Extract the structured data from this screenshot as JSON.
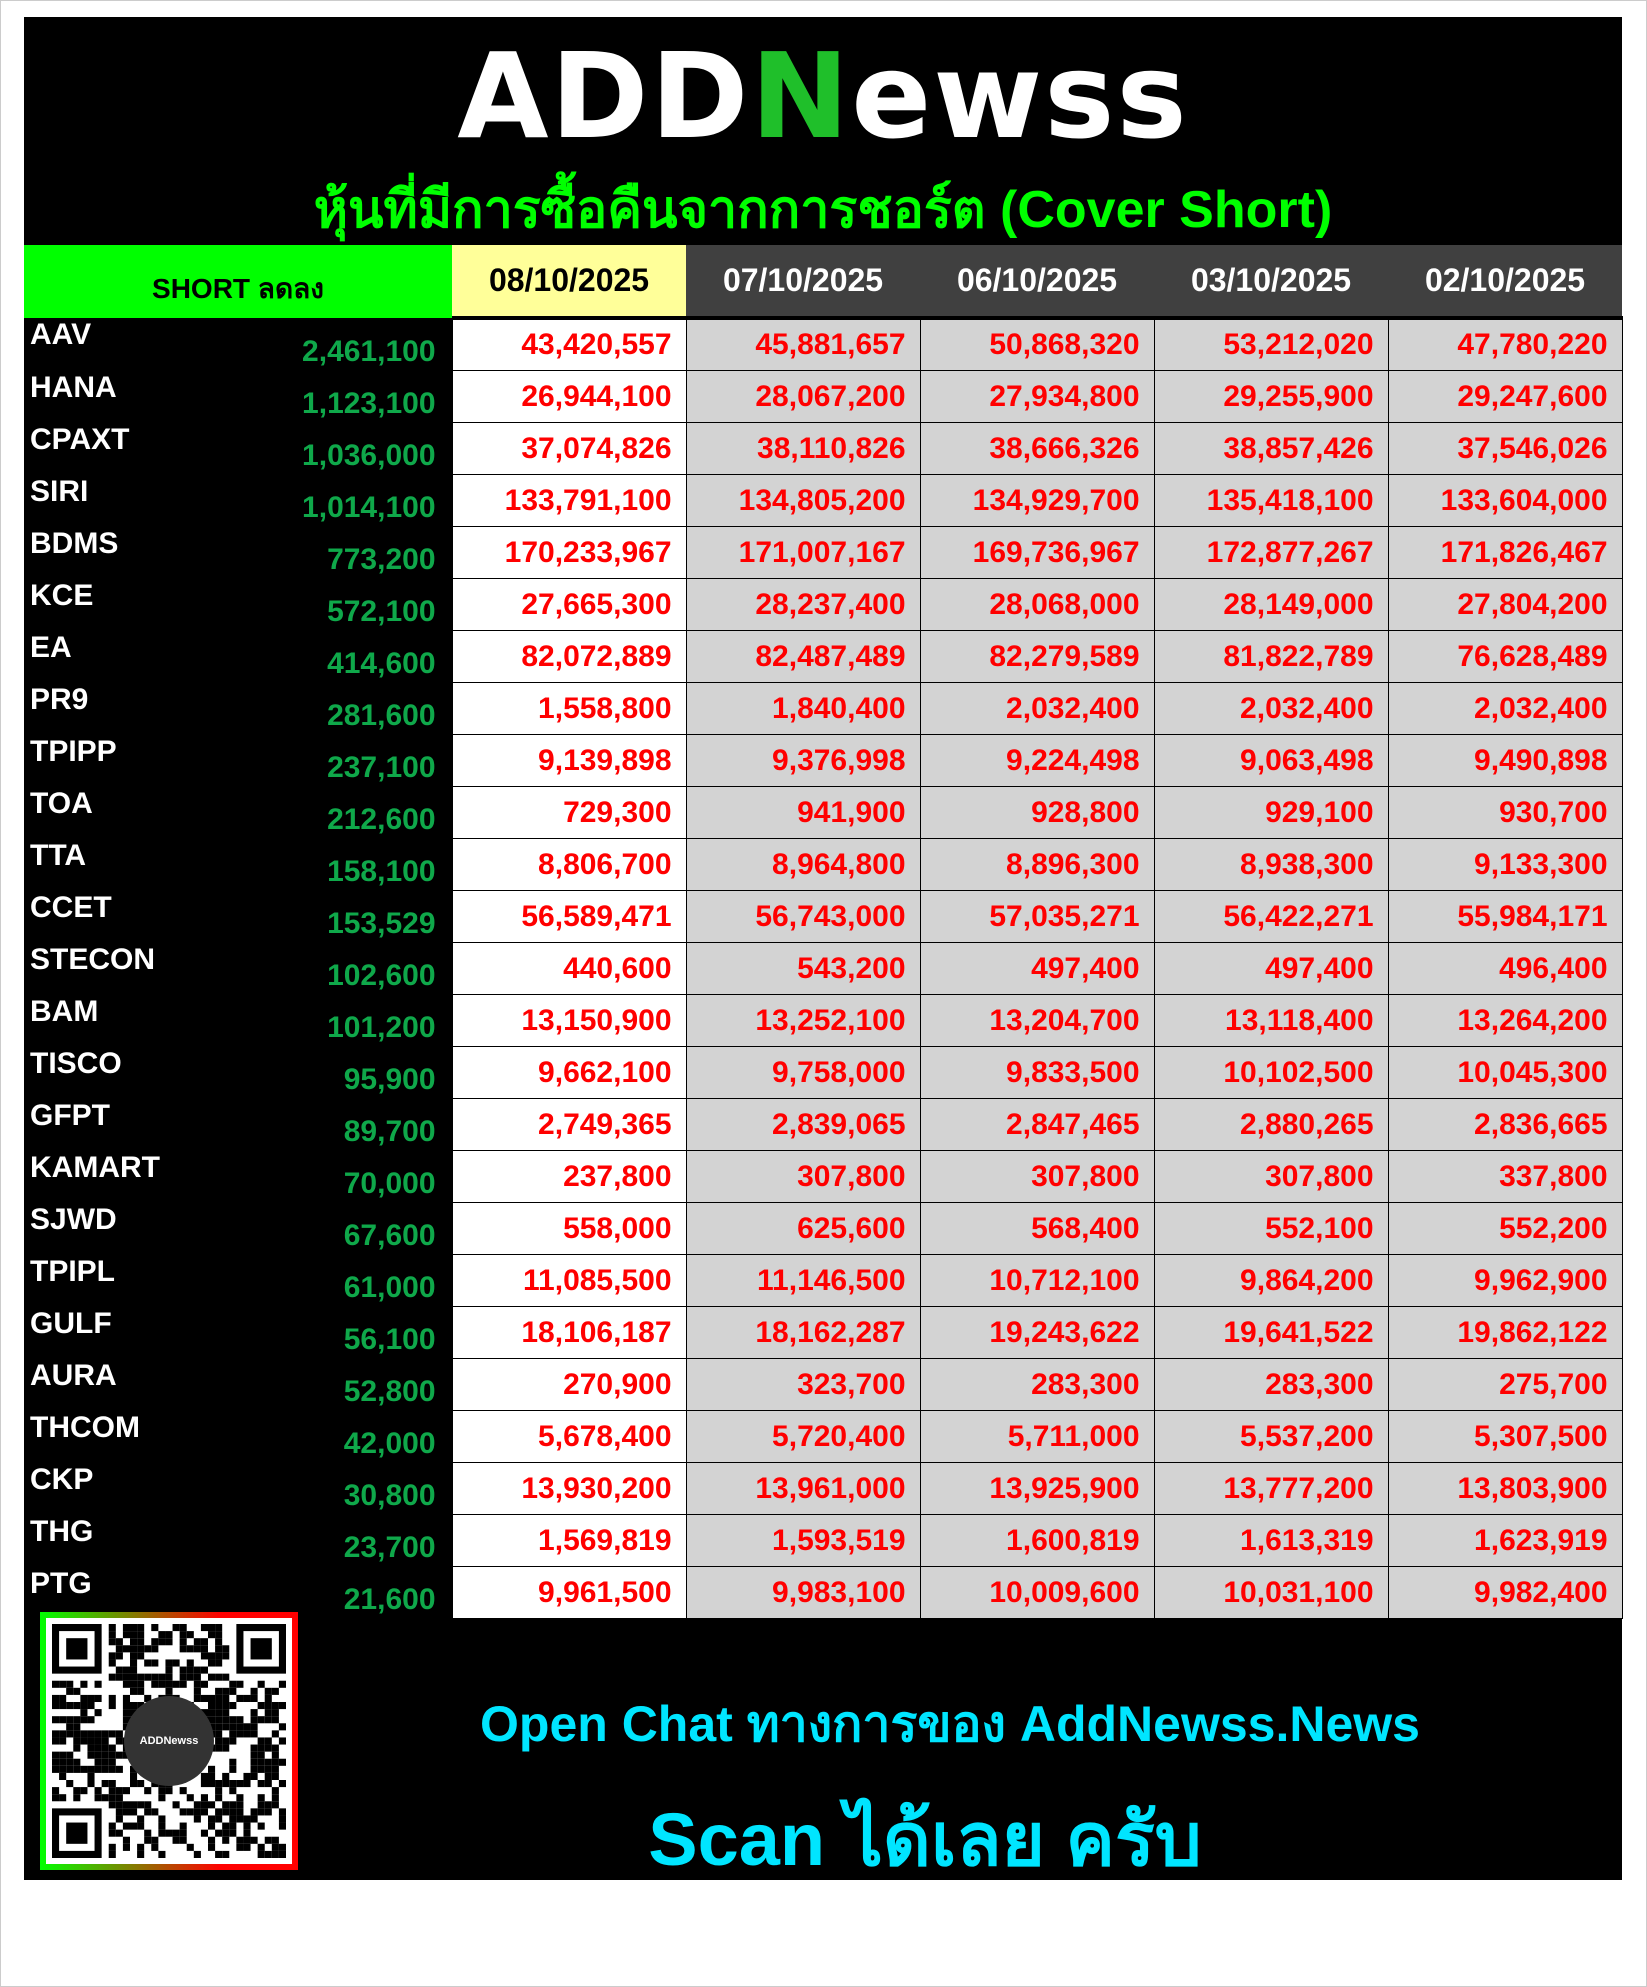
{
  "logo": {
    "pre": "ADD",
    "n": "N",
    "post": "ewss"
  },
  "title": "หุ้นที่มีการซื้อคืนจากการชอร์ต (Cover Short)",
  "colors": {
    "background": "#000000",
    "header_green": "#00ff00",
    "current_date_bg": "#ffff99",
    "date_header_bg": "#404040",
    "value_red": "#ff0000",
    "short_green": "#0fa84a",
    "footer_cyan": "#00e5ff"
  },
  "table": {
    "headers": [
      "SHORT ลดลง",
      "08/10/2025",
      "07/10/2025",
      "06/10/2025",
      "03/10/2025",
      "02/10/2025"
    ],
    "rows": [
      {
        "symbol": "AAV",
        "short_decrease": "2,461,100",
        "values": [
          "43,420,557",
          "45,881,657",
          "50,868,320",
          "53,212,020",
          "47,780,220"
        ]
      },
      {
        "symbol": "HANA",
        "short_decrease": "1,123,100",
        "values": [
          "26,944,100",
          "28,067,200",
          "27,934,800",
          "29,255,900",
          "29,247,600"
        ]
      },
      {
        "symbol": "CPAXT",
        "short_decrease": "1,036,000",
        "values": [
          "37,074,826",
          "38,110,826",
          "38,666,326",
          "38,857,426",
          "37,546,026"
        ]
      },
      {
        "symbol": "SIRI",
        "short_decrease": "1,014,100",
        "values": [
          "133,791,100",
          "134,805,200",
          "134,929,700",
          "135,418,100",
          "133,604,000"
        ]
      },
      {
        "symbol": "BDMS",
        "short_decrease": "773,200",
        "values": [
          "170,233,967",
          "171,007,167",
          "169,736,967",
          "172,877,267",
          "171,826,467"
        ]
      },
      {
        "symbol": "KCE",
        "short_decrease": "572,100",
        "values": [
          "27,665,300",
          "28,237,400",
          "28,068,000",
          "28,149,000",
          "27,804,200"
        ]
      },
      {
        "symbol": "EA",
        "short_decrease": "414,600",
        "values": [
          "82,072,889",
          "82,487,489",
          "82,279,589",
          "81,822,789",
          "76,628,489"
        ]
      },
      {
        "symbol": "PR9",
        "short_decrease": "281,600",
        "values": [
          "1,558,800",
          "1,840,400",
          "2,032,400",
          "2,032,400",
          "2,032,400"
        ]
      },
      {
        "symbol": "TPIPP",
        "short_decrease": "237,100",
        "values": [
          "9,139,898",
          "9,376,998",
          "9,224,498",
          "9,063,498",
          "9,490,898"
        ]
      },
      {
        "symbol": "TOA",
        "short_decrease": "212,600",
        "values": [
          "729,300",
          "941,900",
          "928,800",
          "929,100",
          "930,700"
        ]
      },
      {
        "symbol": "TTA",
        "short_decrease": "158,100",
        "values": [
          "8,806,700",
          "8,964,800",
          "8,896,300",
          "8,938,300",
          "9,133,300"
        ]
      },
      {
        "symbol": "CCET",
        "short_decrease": "153,529",
        "values": [
          "56,589,471",
          "56,743,000",
          "57,035,271",
          "56,422,271",
          "55,984,171"
        ]
      },
      {
        "symbol": "STECON",
        "short_decrease": "102,600",
        "values": [
          "440,600",
          "543,200",
          "497,400",
          "497,400",
          "496,400"
        ]
      },
      {
        "symbol": "BAM",
        "short_decrease": "101,200",
        "values": [
          "13,150,900",
          "13,252,100",
          "13,204,700",
          "13,118,400",
          "13,264,200"
        ]
      },
      {
        "symbol": "TISCO",
        "short_decrease": "95,900",
        "values": [
          "9,662,100",
          "9,758,000",
          "9,833,500",
          "10,102,500",
          "10,045,300"
        ]
      },
      {
        "symbol": "GFPT",
        "short_decrease": "89,700",
        "values": [
          "2,749,365",
          "2,839,065",
          "2,847,465",
          "2,880,265",
          "2,836,665"
        ]
      },
      {
        "symbol": "KAMART",
        "short_decrease": "70,000",
        "values": [
          "237,800",
          "307,800",
          "307,800",
          "307,800",
          "337,800"
        ]
      },
      {
        "symbol": "SJWD",
        "short_decrease": "67,600",
        "values": [
          "558,000",
          "625,600",
          "568,400",
          "552,100",
          "552,200"
        ]
      },
      {
        "symbol": "TPIPL",
        "short_decrease": "61,000",
        "values": [
          "11,085,500",
          "11,146,500",
          "10,712,100",
          "9,864,200",
          "9,962,900"
        ]
      },
      {
        "symbol": "GULF",
        "short_decrease": "56,100",
        "values": [
          "18,106,187",
          "18,162,287",
          "19,243,622",
          "19,641,522",
          "19,862,122"
        ]
      },
      {
        "symbol": "AURA",
        "short_decrease": "52,800",
        "values": [
          "270,900",
          "323,700",
          "283,300",
          "283,300",
          "275,700"
        ]
      },
      {
        "symbol": "THCOM",
        "short_decrease": "42,000",
        "values": [
          "5,678,400",
          "5,720,400",
          "5,711,000",
          "5,537,200",
          "5,307,500"
        ]
      },
      {
        "symbol": "CKP",
        "short_decrease": "30,800",
        "values": [
          "13,930,200",
          "13,961,000",
          "13,925,900",
          "13,777,200",
          "13,803,900"
        ]
      },
      {
        "symbol": "THG",
        "short_decrease": "23,700",
        "values": [
          "1,569,819",
          "1,593,519",
          "1,600,819",
          "1,613,319",
          "1,623,919"
        ]
      },
      {
        "symbol": "PTG",
        "short_decrease": "21,600",
        "values": [
          "9,961,500",
          "9,983,100",
          "10,009,600",
          "10,031,100",
          "9,982,400"
        ]
      }
    ]
  },
  "footer": {
    "qr_badge": "ADDNewss",
    "line1": "Open Chat ทางการของ AddNewss.News",
    "line2": "Scan ได้เลย ครับ"
  }
}
